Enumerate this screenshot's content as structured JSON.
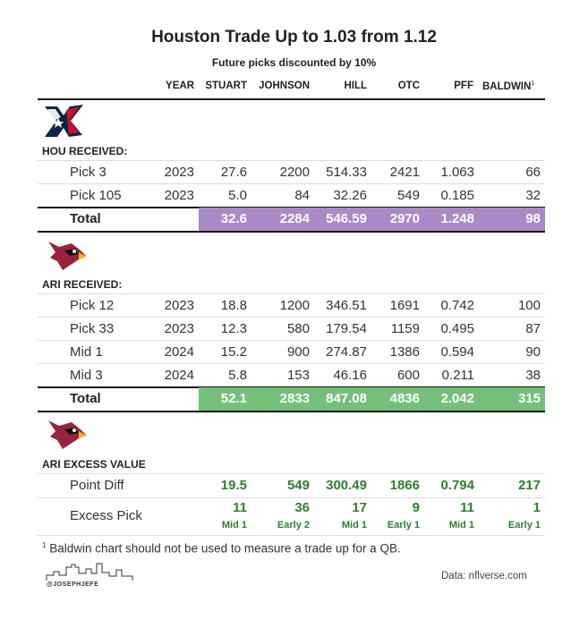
{
  "chart": {
    "title": "Houston Trade Up to 1.03 from 1.12",
    "subtitle": "Future picks discounted by 10%"
  },
  "columns": {
    "year": "YEAR",
    "stuart": "STUART",
    "johnson": "JOHNSON",
    "hill": "HILL",
    "otc": "OTC",
    "pff": "PFF",
    "baldwin": "BALDWIN",
    "baldwin_note": "1"
  },
  "chart_data": {
    "type": "table",
    "title": "Houston Trade Up to 1.03 from 1.12",
    "subtitle": "Future picks discounted by 10%",
    "columns": [
      "YEAR",
      "STUART",
      "JOHNSON",
      "HILL",
      "OTC",
      "PFF",
      "BALDWIN"
    ],
    "hou": {
      "label": "HOU RECEIVED:",
      "rows": [
        {
          "pick": "Pick 3",
          "year": "2023",
          "stuart": "27.6",
          "johnson": "2200",
          "hill": "514.33",
          "otc": "2421",
          "pff": "1.063",
          "baldwin": "66"
        },
        {
          "pick": "Pick 105",
          "year": "2023",
          "stuart": "5.0",
          "johnson": "84",
          "hill": "32.26",
          "otc": "549",
          "pff": "0.185",
          "baldwin": "32"
        }
      ],
      "total": {
        "label": "Total",
        "stuart": "32.6",
        "johnson": "2284",
        "hill": "546.59",
        "otc": "2970",
        "pff": "1.248",
        "baldwin": "98"
      }
    },
    "ari": {
      "label": "ARI RECEIVED:",
      "rows": [
        {
          "pick": "Pick 12",
          "year": "2023",
          "stuart": "18.8",
          "johnson": "1200",
          "hill": "346.51",
          "otc": "1691",
          "pff": "0.742",
          "baldwin": "100"
        },
        {
          "pick": "Pick 33",
          "year": "2023",
          "stuart": "12.3",
          "johnson": "580",
          "hill": "179.54",
          "otc": "1159",
          "pff": "0.495",
          "baldwin": "87"
        },
        {
          "pick": "Mid 1",
          "year": "2024",
          "stuart": "15.2",
          "johnson": "900",
          "hill": "274.87",
          "otc": "1386",
          "pff": "0.594",
          "baldwin": "90"
        },
        {
          "pick": "Mid 3",
          "year": "2024",
          "stuart": "5.8",
          "johnson": "153",
          "hill": "46.16",
          "otc": "600",
          "pff": "0.211",
          "baldwin": "38"
        }
      ],
      "total": {
        "label": "Total",
        "stuart": "52.1",
        "johnson": "2833",
        "hill": "847.08",
        "otc": "4836",
        "pff": "2.042",
        "baldwin": "315"
      }
    },
    "excess": {
      "label": "ARI EXCESS VALUE",
      "point_diff": {
        "label": "Point Diff",
        "stuart": "19.5",
        "johnson": "549",
        "hill": "300.49",
        "otc": "1866",
        "pff": "0.794",
        "baldwin": "217"
      },
      "excess_pick": {
        "label": "Excess Pick",
        "stuart": "11",
        "johnson": "36",
        "hill": "17",
        "otc": "9",
        "pff": "11",
        "baldwin": "1",
        "stuart_sub": "Mid 1",
        "johnson_sub": "Early 2",
        "hill_sub": "Mid 1",
        "otc_sub": "Early 1",
        "pff_sub": "Mid 1",
        "baldwin_sub": "Early 1"
      }
    }
  },
  "footer": {
    "note_marker": "1",
    "note": "Baldwin chart should not be used to measure a trade up for a QB.",
    "handle": "@JOSEPHJEFE",
    "source": "Data: nflverse.com"
  },
  "colors": {
    "hou_total": "#a98ac6",
    "ari_total": "#74c07b",
    "excess_text": "#2e7d32"
  }
}
